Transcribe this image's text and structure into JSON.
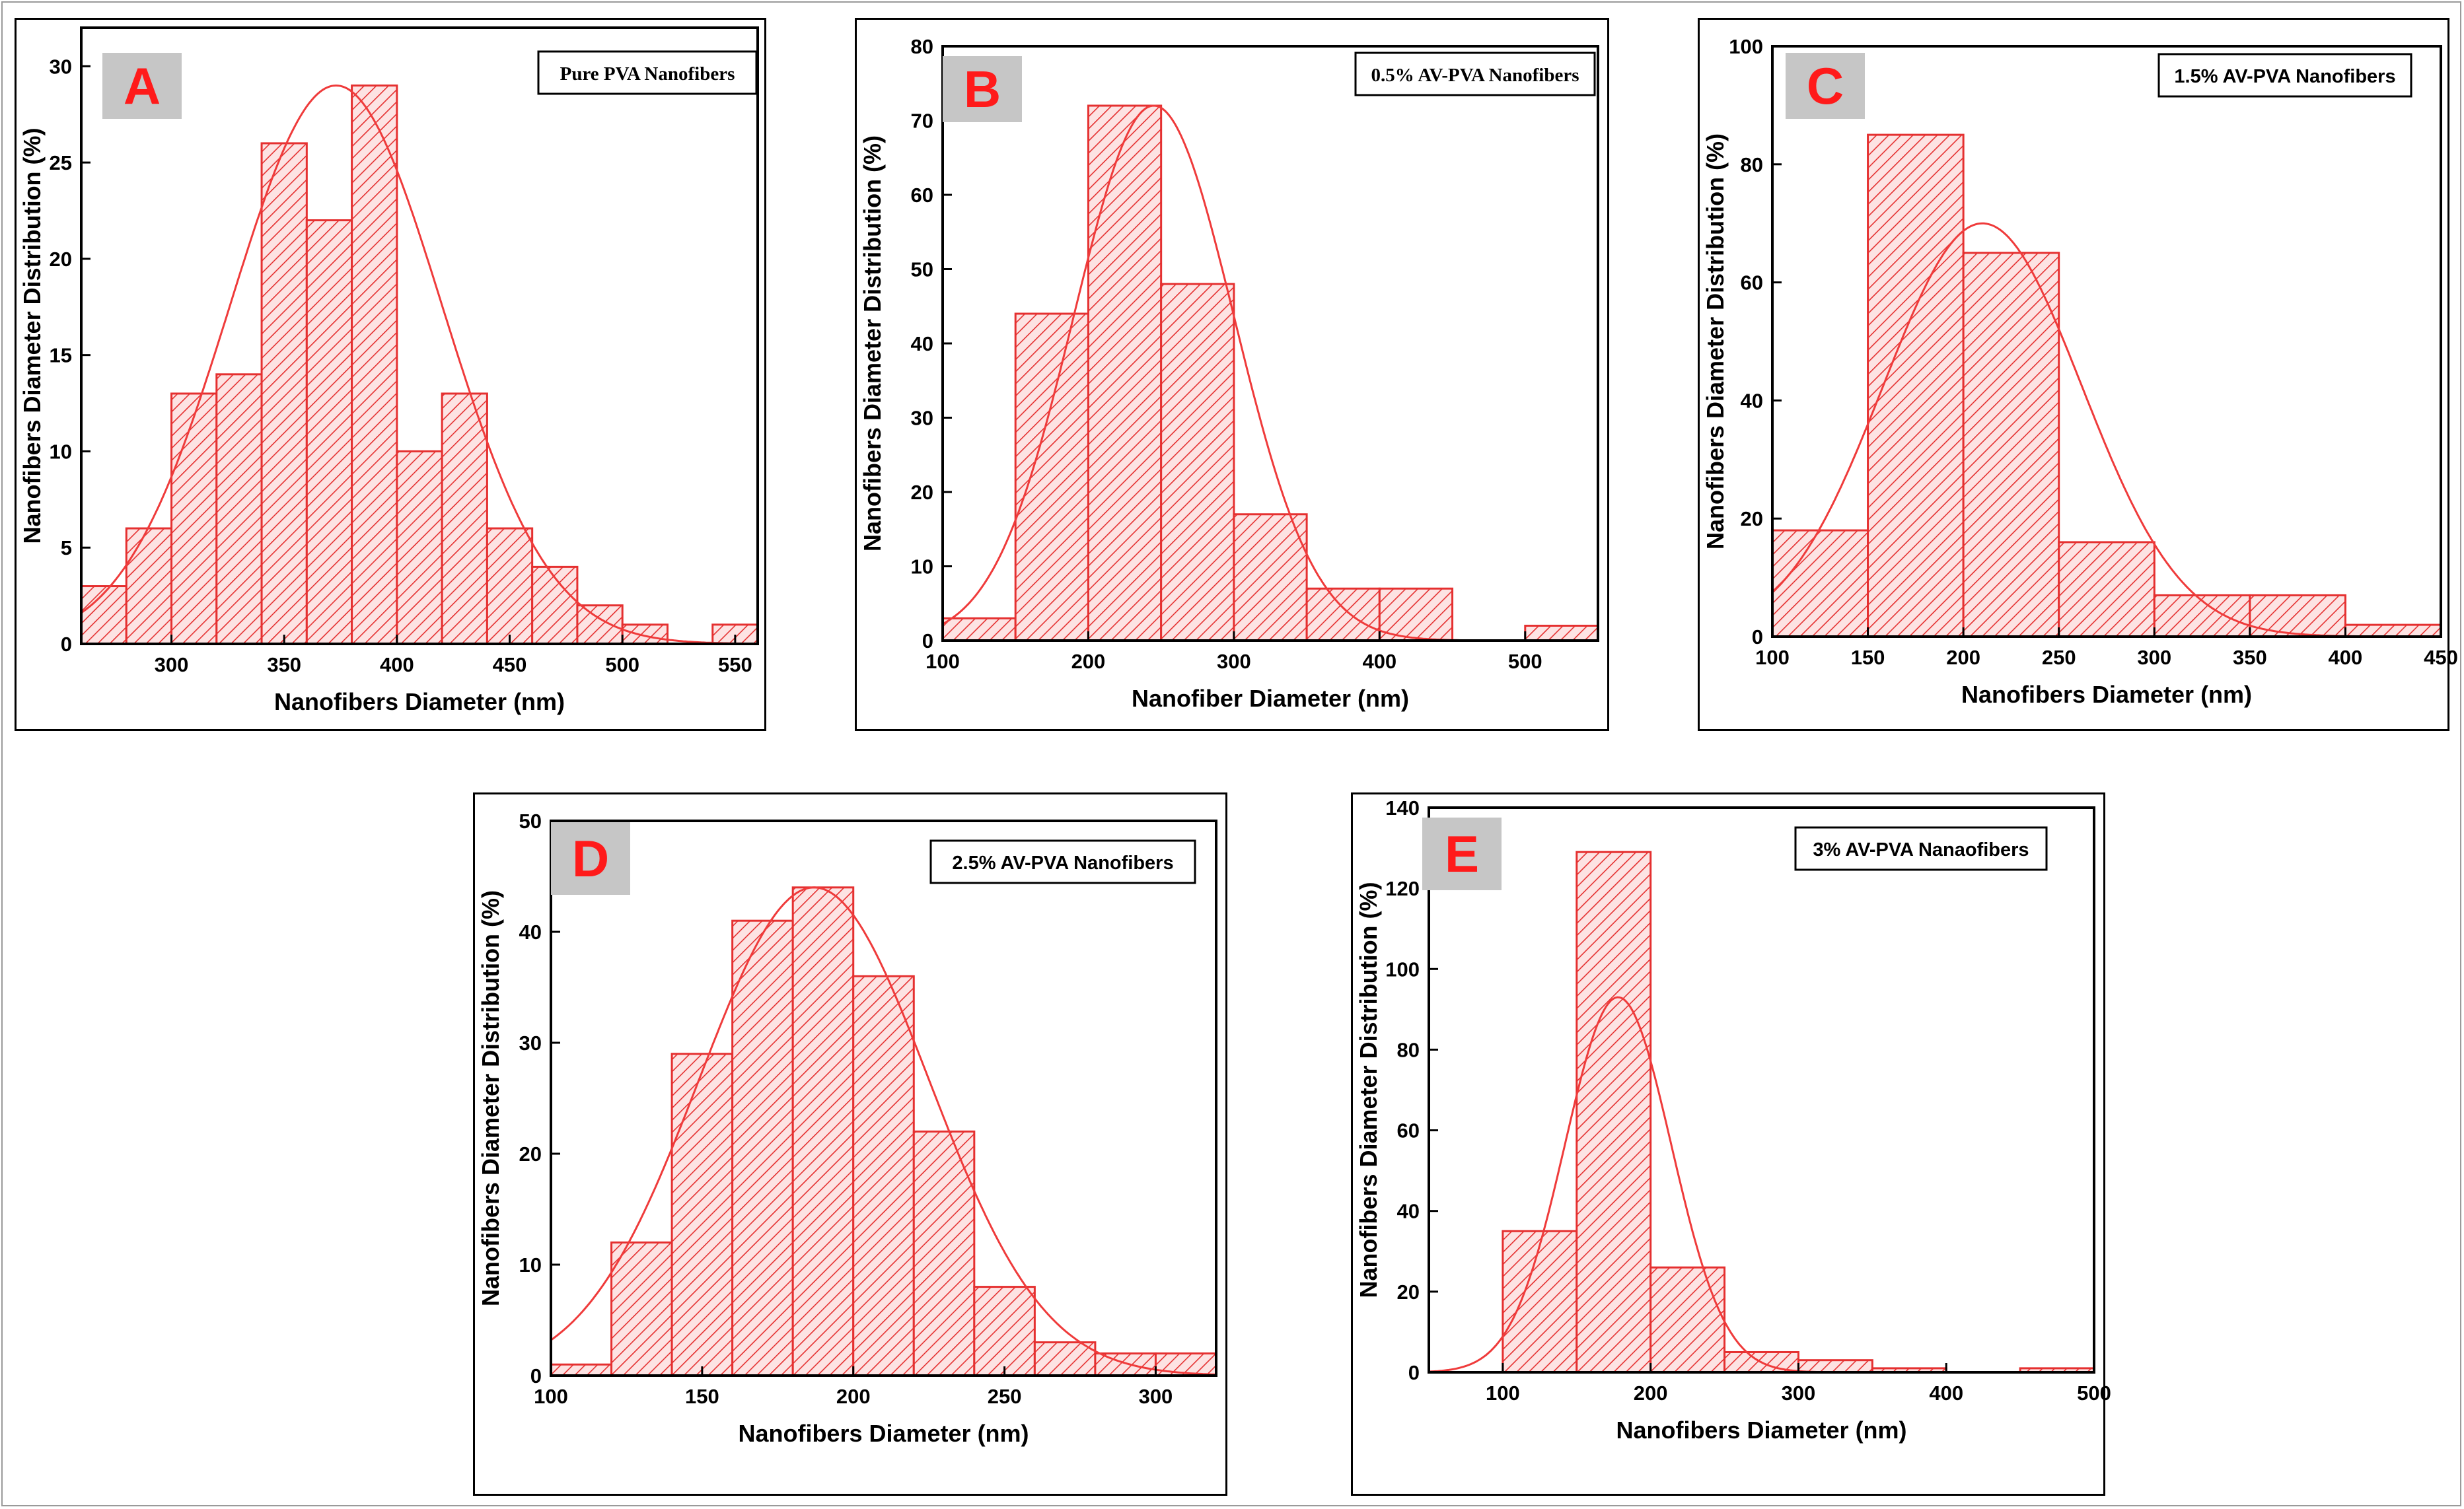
{
  "colors": {
    "bar_fill": "#fde3e3",
    "hatch": "#e53030",
    "fit_line": "#ef3b3b",
    "badge_bg": "#c6c6c6",
    "badge_text": "#ff1a1a"
  },
  "chart_data": [
    {
      "panel": "A",
      "type": "bar",
      "title": "Pure PVA Nanofibers",
      "xlabel": "Nanofibers Diameter (nm)",
      "ylabel": "Nanofibers Diameter Distribution (%)",
      "xlim": [
        260,
        560
      ],
      "ylim": [
        0,
        32
      ],
      "xticks": [
        300,
        350,
        400,
        450,
        500,
        550
      ],
      "yticks": [
        0,
        5,
        10,
        15,
        20,
        25,
        30
      ],
      "bin_edges": [
        260,
        280,
        300,
        320,
        340,
        360,
        380,
        400,
        420,
        440,
        460,
        480,
        500,
        520,
        540,
        560
      ],
      "values": [
        3,
        6,
        13,
        14,
        26,
        22,
        29,
        10,
        13,
        6,
        4,
        2,
        1,
        0,
        1
      ],
      "fit": {
        "type": "gaussian",
        "mean": 373,
        "sd": 47,
        "peak": 29
      }
    },
    {
      "panel": "B",
      "type": "bar",
      "title": "0.5% AV-PVA Nanofibers",
      "xlabel": "Nanofiber Diameter (nm)",
      "ylabel": "Nanofibers Diameter Distribution (%)",
      "xlim": [
        100,
        550
      ],
      "ylim": [
        0,
        80
      ],
      "xticks": [
        100,
        200,
        300,
        400,
        500
      ],
      "yticks": [
        0,
        10,
        20,
        30,
        40,
        50,
        60,
        70,
        80
      ],
      "bin_edges": [
        100,
        150,
        200,
        250,
        300,
        350,
        400,
        450,
        500,
        550
      ],
      "values": [
        3,
        44,
        72,
        48,
        17,
        7,
        7,
        0,
        2
      ],
      "fit": {
        "type": "gaussian",
        "mean": 245,
        "sd": 55,
        "peak": 72
      }
    },
    {
      "panel": "C",
      "type": "bar",
      "title": "1.5% AV-PVA Nanofibers",
      "xlabel": "Nanofibers Diameter (nm)",
      "ylabel": "Nanofibers Diameter Distribution (%)",
      "xlim": [
        100,
        450
      ],
      "ylim": [
        0,
        100
      ],
      "xticks": [
        100,
        150,
        200,
        250,
        300,
        350,
        400,
        450
      ],
      "yticks": [
        0,
        20,
        40,
        60,
        80,
        100
      ],
      "bin_edges": [
        100,
        150,
        200,
        250,
        300,
        350,
        400,
        450
      ],
      "values": [
        18,
        85,
        65,
        16,
        7,
        7,
        2
      ],
      "fit": {
        "type": "gaussian",
        "mean": 210,
        "sd": 52,
        "peak": 70
      }
    },
    {
      "panel": "D",
      "type": "bar",
      "title": "2.5% AV-PVA Nanofibers",
      "xlabel": "Nanofibers Diameter (nm)",
      "ylabel": "Nanofibers Diameter Distribution (%)",
      "xlim": [
        100,
        320
      ],
      "ylim": [
        0,
        50
      ],
      "xticks": [
        100,
        150,
        200,
        250,
        300
      ],
      "yticks": [
        0,
        10,
        20,
        30,
        40,
        50
      ],
      "bin_edges": [
        100,
        120,
        140,
        160,
        180,
        200,
        220,
        240,
        260,
        280,
        300,
        320
      ],
      "values": [
        1,
        12,
        29,
        41,
        44,
        36,
        22,
        8,
        3,
        2,
        2
      ],
      "fit": {
        "type": "gaussian",
        "mean": 187,
        "sd": 38,
        "peak": 44
      }
    },
    {
      "panel": "E",
      "type": "bar",
      "title": "3% AV-PVA Nanaofibers",
      "xlabel": "Nanofibers Diameter (nm)",
      "ylabel": "Nanofibers Diameter Distribution (%)",
      "xlim": [
        50,
        500
      ],
      "ylim": [
        0,
        140
      ],
      "xticks": [
        100,
        200,
        300,
        400,
        500
      ],
      "yticks": [
        0,
        20,
        40,
        60,
        80,
        100,
        120,
        140
      ],
      "bin_edges": [
        50,
        100,
        150,
        200,
        250,
        300,
        350,
        400,
        450,
        500
      ],
      "values": [
        0,
        35,
        129,
        26,
        5,
        3,
        1,
        0,
        1
      ],
      "fit": {
        "type": "gaussian",
        "mean": 178,
        "sd": 36,
        "peak": 93
      }
    }
  ]
}
